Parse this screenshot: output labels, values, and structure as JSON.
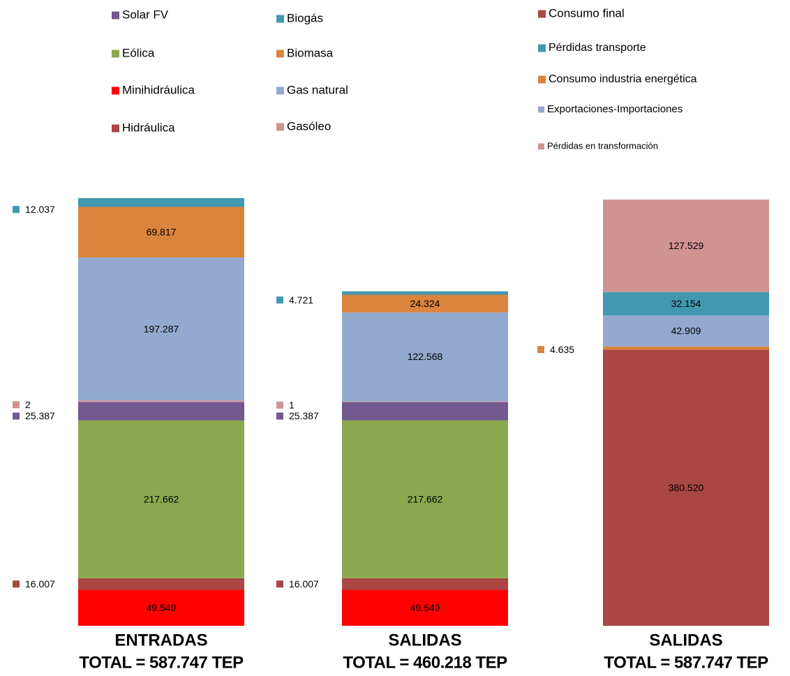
{
  "chart_data": {
    "type": "stacked_bar",
    "categories": [
      "ENTRADAS",
      "SALIDAS",
      "SALIDAS"
    ],
    "totals": [
      "TOTAL = 587.747 TEP",
      "TOTAL = 460.218 TEP",
      "TOTAL = 587.747 TEP"
    ],
    "series": [
      {
        "name": "Minihidráulica",
        "color": "#ff0000",
        "values": [
          49.549,
          49.549,
          null
        ],
        "value_labels": [
          "49.549",
          "49.549",
          null
        ]
      },
      {
        "name": "Hidráulica",
        "color": "#aa4643",
        "values": [
          16.007,
          16.007,
          null
        ],
        "value_labels": [
          "16.007",
          "16.007",
          null
        ]
      },
      {
        "name": "Eólica",
        "color": "#8ba84e",
        "values": [
          217.662,
          217.662,
          null
        ],
        "value_labels": [
          "217.662",
          "217.662",
          null
        ]
      },
      {
        "name": "Solar FV",
        "color": "#71588f",
        "values": [
          25.387,
          25.387,
          null
        ],
        "value_labels": [
          "25.387",
          "25.387",
          null
        ]
      },
      {
        "name": "Gasóleo",
        "color": "#d19392",
        "values": [
          2,
          1,
          null
        ],
        "value_labels": [
          "2",
          "1",
          null
        ]
      },
      {
        "name": "Gas natural",
        "color": "#93a9cf",
        "values": [
          197.287,
          122.568,
          null
        ],
        "value_labels": [
          "197.287",
          "122.568",
          null
        ]
      },
      {
        "name": "Biomasa",
        "color": "#db843d",
        "values": [
          69.817,
          24.324,
          null
        ],
        "value_labels": [
          "69.817",
          "24.324",
          null
        ]
      },
      {
        "name": "Biogás",
        "color": "#4198af",
        "values": [
          12.037,
          4.721,
          null
        ],
        "value_labels": [
          "12.037",
          "4.721",
          null
        ]
      },
      {
        "name": "Consumo final",
        "color": "#aa4643",
        "values": [
          null,
          null,
          380.52
        ],
        "value_labels": [
          null,
          null,
          "380.520"
        ]
      },
      {
        "name": "Consumo industria energética",
        "color": "#db843d",
        "values": [
          null,
          null,
          4.635
        ],
        "value_labels": [
          null,
          null,
          "4.635"
        ]
      },
      {
        "name": "Exportaciones-Importaciones",
        "color": "#93a9cf",
        "values": [
          null,
          null,
          42.909
        ],
        "value_labels": [
          null,
          null,
          "42.909"
        ]
      },
      {
        "name": "Pérdidas transporte",
        "color": "#4198af",
        "values": [
          null,
          null,
          32.154
        ],
        "value_labels": [
          null,
          null,
          "32.154"
        ]
      },
      {
        "name": "Pérdidas en transformación",
        "color": "#d19392",
        "values": [
          null,
          null,
          127.529
        ],
        "value_labels": [
          null,
          null,
          "127.529"
        ]
      }
    ]
  }
}
